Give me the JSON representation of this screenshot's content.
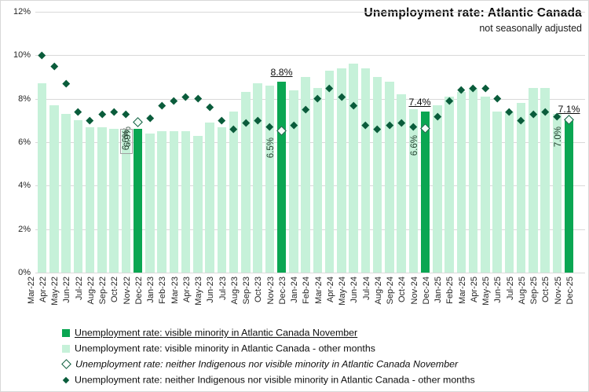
{
  "header": {
    "title": "Unemployment rate: Atlantic Canada",
    "subtitle": "not seasonally adjusted"
  },
  "colors": {
    "bar_light": "#c6f1d9",
    "bar_dark": "#0aa652",
    "diamond_dark": "#0a5c3b",
    "gridline": "#d9d9d9"
  },
  "legend": {
    "items": [
      {
        "marker": "square-dark-green",
        "label": "Unemployment rate: visible minority in Atlantic Canada November",
        "style": "underline"
      },
      {
        "marker": "square-light-green",
        "label": "Unemployment rate: visible minority in Atlantic Canada - other months",
        "style": "normal"
      },
      {
        "marker": "diamond-open",
        "label": "Unemployment rate: neither Indigenous nor visible minority in Atlantic Canada November",
        "style": "italic"
      },
      {
        "marker": "diamond-filled",
        "label": "Unemployment rate: neither Indigenous nor visible minority in Atlantic Canada - other months",
        "style": "normal"
      }
    ]
  },
  "chart_data": {
    "type": "bar",
    "title": "Unemployment rate: Atlantic Canada",
    "subtitle": "not seasonally adjusted",
    "ylim": [
      0,
      12
    ],
    "y_tick_labels": [
      "0%",
      "2%",
      "4%",
      "6%",
      "8%",
      "10%",
      "12%"
    ],
    "y_tick_values": [
      0,
      2,
      4,
      6,
      8,
      10,
      12
    ],
    "grid": "horizontal",
    "legend_position": "bottom-left",
    "categories": [
      "Mar-22",
      "Apr-22",
      "May-22",
      "Jun-22",
      "Jul-22",
      "Aug-22",
      "Sep-22",
      "Oct-22",
      "Nov-22",
      "Dec-22",
      "Jan-23",
      "Feb-23",
      "Mar-23",
      "Apr-23",
      "May-23",
      "Jun-23",
      "Jul-23",
      "Aug-23",
      "Sep-23",
      "Oct-23",
      "Nov-23",
      "Dec-23",
      "Jan-24",
      "Feb-24",
      "Mar-24",
      "Apr-24",
      "May-24",
      "Jun-24",
      "Jul-24",
      "Aug-24",
      "Sep-24",
      "Oct-24",
      "Nov-24",
      "Dec-24",
      "Jan-25",
      "Feb-25",
      "Mar-25",
      "Apr-25",
      "May-25",
      "Jun-25",
      "Jul-25",
      "Aug-25",
      "Sep-25",
      "Oct-25",
      "Nov-25",
      "Dec-25"
    ],
    "series": [
      {
        "name": "Unemployment rate: visible minority in Atlantic Canada",
        "type": "bar",
        "values": [
          8.7,
          7.7,
          7.3,
          7.0,
          6.7,
          6.7,
          6.6,
          6.6,
          6.6,
          6.4,
          6.5,
          6.5,
          6.5,
          6.3,
          6.9,
          6.7,
          7.4,
          8.3,
          8.7,
          8.6,
          8.8,
          8.4,
          9.0,
          8.5,
          9.3,
          9.4,
          9.6,
          9.4,
          9.0,
          8.8,
          8.2,
          7.5,
          7.4,
          7.7,
          8.1,
          8.3,
          8.5,
          8.1,
          7.4,
          7.4,
          7.8,
          8.5,
          8.5,
          7.3,
          7.1,
          null
        ]
      },
      {
        "name": "Unemployment rate: neither Indigenous nor visible minority in Atlantic Canada",
        "type": "scatter",
        "values": [
          10.0,
          9.5,
          8.7,
          7.4,
          7.0,
          7.3,
          7.4,
          7.3,
          6.9,
          7.1,
          7.7,
          7.9,
          8.1,
          8.0,
          7.6,
          7.0,
          6.6,
          6.9,
          7.0,
          6.7,
          6.5,
          6.8,
          7.5,
          8.0,
          8.5,
          8.1,
          7.7,
          6.8,
          6.6,
          6.8,
          6.9,
          6.7,
          6.6,
          7.2,
          7.9,
          8.4,
          8.5,
          8.5,
          8.0,
          7.4,
          7.0,
          7.3,
          7.4,
          7.2,
          7.0,
          null
        ]
      }
    ],
    "november_indices": [
      8,
      20,
      32,
      44
    ],
    "november_annotations": [
      {
        "index": 8,
        "above_label": null,
        "inside_label": "6.6%",
        "extra_label": "6.9%",
        "boxed": true,
        "label_dx": 0
      },
      {
        "index": 20,
        "above_label": "8.8%",
        "inside_label": "6.5%",
        "extra_label": null,
        "boxed": false,
        "label_dx": 0
      },
      {
        "index": 32,
        "above_label": "7.4%",
        "inside_label": "6.6%",
        "extra_label": null,
        "boxed": false,
        "label_dx": -7
      },
      {
        "index": 44,
        "above_label": "7.1%",
        "inside_label": "7.0%",
        "extra_label": null,
        "boxed": false,
        "label_dx": 0
      }
    ]
  }
}
